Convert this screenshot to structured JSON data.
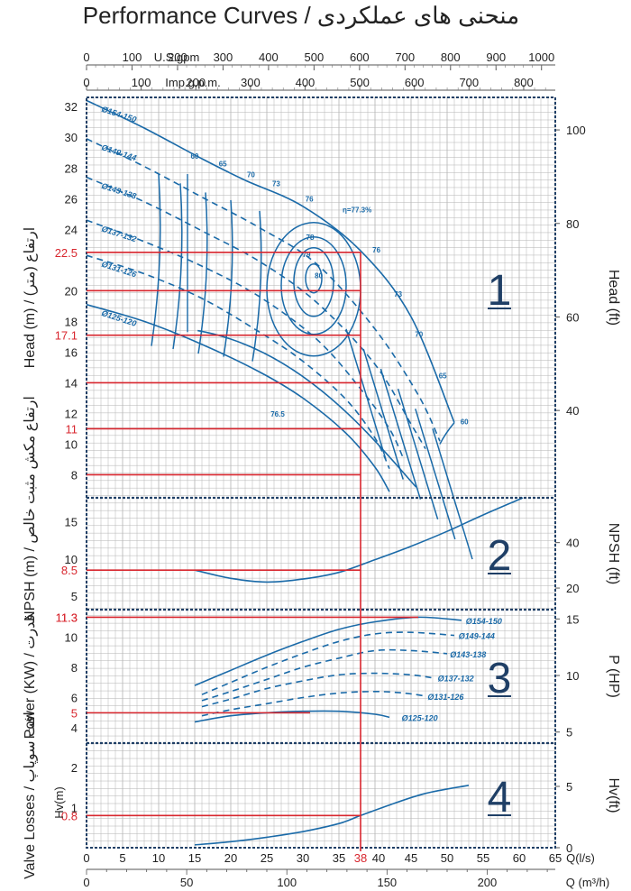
{
  "title": "Performance  Curves / منحنی های عملکردی",
  "chart_data": {
    "type": "line",
    "x_axes": {
      "q_ls": {
        "label": "Q(l/s)",
        "range": [
          0,
          65
        ],
        "ticks": [
          0,
          5,
          10,
          15,
          20,
          25,
          30,
          35,
          40,
          45,
          50,
          55,
          60,
          65
        ]
      },
      "q_m3h": {
        "label": "Q (m³/h)",
        "ticks": [
          0,
          50,
          100,
          150,
          200
        ]
      },
      "us_gpm": {
        "label": "U.S.gpm",
        "ticks": [
          0,
          100,
          200,
          300,
          400,
          500,
          600,
          700,
          800,
          900,
          1000
        ]
      },
      "imp_gpm": {
        "label": "Imp.g.p.m.",
        "ticks": [
          0,
          100,
          200,
          300,
          400,
          500,
          600,
          700,
          800
        ]
      }
    },
    "operating_point": {
      "q_ls": 38,
      "q_label": "38"
    },
    "panels": [
      {
        "id": "1",
        "ylabel_left": "Head (m) / ارتفاع (متر)",
        "ylabel_right": "Head (ft)",
        "ylim": [
          6.5,
          32.6
        ],
        "yticks_left": [
          8,
          10,
          12,
          14,
          16,
          18,
          20,
          22,
          24,
          26,
          28,
          30,
          32
        ],
        "yticks_right": [
          40,
          60,
          80,
          100
        ],
        "yticks_red": [
          "22.5",
          "17.1",
          "11"
        ],
        "red_levels": [
          22.5,
          20,
          17.1,
          14,
          11,
          8
        ],
        "series": [
          {
            "name": "Ø154-150",
            "style": "solid",
            "x": [
              0,
              8,
              16,
              22,
              30,
              38,
              45,
              51
            ],
            "y": [
              32.4,
              30.6,
              28.6,
              27.2,
              25.5,
              22.6,
              18.3,
              11.4
            ]
          },
          {
            "name": "Ø149-144",
            "style": "dashed",
            "x": [
              0,
              8,
              16,
              24,
              32,
              40,
              46,
              49
            ],
            "y": [
              29.9,
              28.1,
              26.1,
              24.1,
              21.7,
              17.5,
              13.2,
              10.2
            ]
          },
          {
            "name": "Ø143-138",
            "style": "dashed",
            "x": [
              0,
              8,
              16,
              24,
              32,
              40,
              45,
              47
            ],
            "y": [
              27.4,
              25.8,
              23.9,
              21.9,
              19.2,
              15.2,
              11.3,
              9.7
            ]
          },
          {
            "name": "Ø137-132",
            "style": "dashed",
            "x": [
              0,
              8,
              16,
              24,
              32,
              38,
              42,
              44
            ],
            "y": [
              24.6,
              23.2,
              21.6,
              19.6,
              16.8,
              13.6,
              11.0,
              9.0
            ]
          },
          {
            "name": "Ø131-126",
            "style": "dashed",
            "x": [
              0,
              8,
              16,
              24,
              30,
              36,
              40,
              42
            ],
            "y": [
              22.3,
              21.1,
              19.5,
              17.3,
              15.4,
              12.9,
              10.4,
              8.4
            ]
          },
          {
            "name": "Ø125-120",
            "style": "solid",
            "x": [
              0,
              8,
              16,
              24,
              30,
              36,
              40,
              42
            ],
            "y": [
              19.1,
              18.0,
              16.5,
              14.7,
              13.0,
              10.7,
              8.5,
              6.9
            ]
          }
        ],
        "efficiency_labels": [
          "60",
          "65",
          "70",
          "73",
          "76",
          "78",
          "79",
          "80",
          "76",
          "73",
          "70",
          "65",
          "60",
          "76.5"
        ],
        "efficiency_label": "η=77.3%",
        "panel_number": "1"
      },
      {
        "id": "2",
        "ylabel_left": "NPSH (m) / ارتفاع مکش مثبت خالص",
        "ylabel_right": "NPSH (ft)",
        "ylim": [
          3.2,
          18.2
        ],
        "yticks_left": [
          5,
          10,
          15
        ],
        "yticks_right": [
          20,
          40
        ],
        "yticks_red": [
          "8.5"
        ],
        "series": [
          {
            "name": "NPSH",
            "style": "solid",
            "x": [
              15,
              20,
              25,
              30,
              35,
              40,
              45,
              50,
              55,
              60.5
            ],
            "y": [
              8.5,
              7.4,
              6.9,
              7.3,
              8.2,
              9.9,
              11.7,
              13.7,
              15.9,
              18.2
            ]
          }
        ],
        "panel_number": "2"
      },
      {
        "id": "3",
        "ylabel_left": "Power (KW) / قدرت",
        "ylabel_right": "P (HP)",
        "ylim": [
          3.0,
          11.8
        ],
        "yticks_left": [
          4,
          5,
          6,
          8,
          10,
          11.3
        ],
        "yticks_right": [
          5,
          10,
          15
        ],
        "yticks_red": [
          "11.3",
          "5"
        ],
        "series": [
          {
            "name": "Ø154-150",
            "style": "solid",
            "x": [
              15,
              20,
              25,
              30,
              35,
              40,
              46,
              52
            ],
            "y": [
              6.8,
              7.8,
              8.8,
              9.7,
              10.5,
              11.0,
              11.3,
              11.1
            ]
          },
          {
            "name": "Ø149-144",
            "style": "dashed",
            "x": [
              16,
              20,
              25,
              30,
              35,
              40,
              45,
              51
            ],
            "y": [
              6.2,
              7.0,
              8.0,
              8.9,
              9.7,
              10.2,
              10.3,
              10.1
            ]
          },
          {
            "name": "Ø143-138",
            "style": "dashed",
            "x": [
              16,
              20,
              25,
              30,
              35,
              40,
              45,
              50
            ],
            "y": [
              5.8,
              6.4,
              7.2,
              8.0,
              8.6,
              9.1,
              9.1,
              8.9
            ]
          },
          {
            "name": "Ø137-132",
            "style": "dashed",
            "x": [
              16,
              20,
              25,
              30,
              35,
              40,
              45,
              48
            ],
            "y": [
              5.4,
              5.9,
              6.6,
              7.1,
              7.5,
              7.6,
              7.5,
              7.3
            ]
          },
          {
            "name": "Ø131-126",
            "style": "dashed",
            "x": [
              16,
              20,
              25,
              30,
              35,
              40,
              44,
              47
            ],
            "y": [
              4.8,
              5.2,
              5.6,
              6.0,
              6.3,
              6.4,
              6.3,
              6.1
            ]
          },
          {
            "name": "Ø125-120",
            "style": "solid",
            "x": [
              15,
              20,
              25,
              30,
              35,
              40,
              42
            ],
            "y": [
              4.4,
              4.8,
              5.0,
              5.1,
              5.1,
              4.9,
              4.7
            ]
          }
        ],
        "panel_number": "3"
      },
      {
        "id": "4",
        "ylabel_left": "Valve Losses / افت سوپاپ",
        "ylabel_sub": "Hv(m)",
        "ylabel_right": "Hv(ft)",
        "ylim": [
          0,
          2.6
        ],
        "yticks_left": [
          1,
          2
        ],
        "yticks_right": [
          0,
          5
        ],
        "yticks_red": [
          "0.8"
        ],
        "series": [
          {
            "name": "Hv",
            "style": "solid",
            "x": [
              15,
              20,
              25,
              30,
              35,
              38,
              42,
              47,
              53
            ],
            "y": [
              0.07,
              0.15,
              0.26,
              0.4,
              0.6,
              0.8,
              1.06,
              1.35,
              1.55
            ]
          }
        ],
        "panel_number": "4"
      }
    ],
    "colors": {
      "curve": "#1a6aa8",
      "operating": "#d8262e",
      "grid": "#b3b3b3",
      "frame": "#1f3f66"
    }
  }
}
